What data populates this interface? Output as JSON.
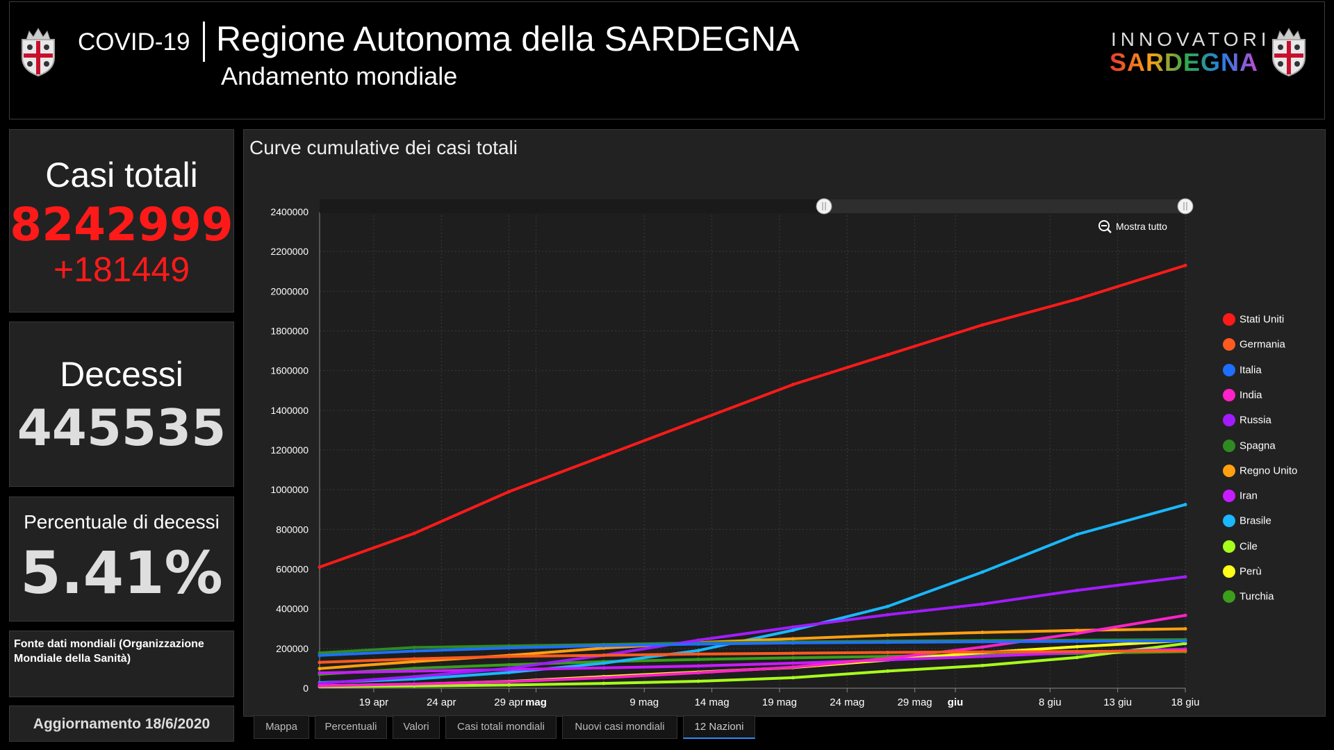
{
  "header": {
    "covid": "COVID-19",
    "region": "Regione Autonoma della SARDEGNA",
    "subtitle": "Andamento mondiale",
    "logo_top": "INNOVATORI",
    "logo_bottom": "SARDEGNA"
  },
  "stats": {
    "casi_label": "Casi totali",
    "casi_value": "8242999",
    "casi_delta": "+181449",
    "decessi_label": "Decessi",
    "decessi_value": "445535",
    "perc_label": "Percentuale di decessi",
    "perc_value": "5.41%",
    "fonte": "Fonte dati mondiali (Organizzazione Mondiale della Sanità)",
    "aggiornamento": "Aggiornamento 18/6/2020"
  },
  "colors": {
    "casi_red": "#ff1a1a",
    "accent_blue": "#2b8cff"
  },
  "tabs": [
    "Mappa",
    "Percentuali",
    "Valori",
    "Casi totali mondiali",
    "Nuovi casi mondiali",
    "12 Nazioni"
  ],
  "active_tab": "12 Nazioni",
  "zoom": {
    "reset_label": "Mostra tutto",
    "reset_icon": "zoom-out-icon"
  },
  "chart_data": {
    "type": "line",
    "title": "Curve cumulative dei casi totali",
    "xlabel": "",
    "ylabel": "",
    "x_ticks": [
      {
        "label": "19 apr",
        "date": "2020-04-19"
      },
      {
        "label": "24 apr",
        "date": "2020-04-24"
      },
      {
        "label": "29 apr",
        "date": "2020-04-29"
      },
      {
        "label": "mag",
        "date": "2020-05-01",
        "bold": true
      },
      {
        "label": "9 mag",
        "date": "2020-05-09"
      },
      {
        "label": "14 mag",
        "date": "2020-05-14"
      },
      {
        "label": "19 mag",
        "date": "2020-05-19"
      },
      {
        "label": "24 mag",
        "date": "2020-05-24"
      },
      {
        "label": "29 mag",
        "date": "2020-05-29"
      },
      {
        "label": "giu",
        "date": "2020-06-01",
        "bold": true
      },
      {
        "label": "8 giu",
        "date": "2020-06-08"
      },
      {
        "label": "13 giu",
        "date": "2020-06-13"
      },
      {
        "label": "18 giu",
        "date": "2020-06-18"
      }
    ],
    "x_range": [
      "2020-04-15",
      "2020-06-18"
    ],
    "ylim": [
      0,
      2400000
    ],
    "y_ticks": [
      0,
      200000,
      400000,
      600000,
      800000,
      1000000,
      1200000,
      1400000,
      1600000,
      1800000,
      2000000,
      2200000,
      2400000
    ],
    "grid": true,
    "legend_position": "right",
    "x": [
      "2020-04-15",
      "2020-04-22",
      "2020-04-29",
      "2020-05-06",
      "2020-05-13",
      "2020-05-20",
      "2020-05-27",
      "2020-06-03",
      "2020-06-10",
      "2020-06-18"
    ],
    "series": [
      {
        "name": "Stati Uniti",
        "color": "#ff1a1a",
        "values": [
          610000,
          780000,
          990000,
          1170000,
          1350000,
          1530000,
          1680000,
          1830000,
          1960000,
          2130000
        ]
      },
      {
        "name": "Germania",
        "color": "#ff5a1f",
        "values": [
          130000,
          148000,
          160000,
          166000,
          172000,
          176000,
          180000,
          183000,
          185000,
          188000
        ]
      },
      {
        "name": "Italia",
        "color": "#1f6fff",
        "values": [
          165000,
          187000,
          203000,
          214000,
          222000,
          228000,
          231000,
          234000,
          236000,
          238000
        ]
      },
      {
        "name": "India",
        "color": "#ff22c8",
        "values": [
          12000,
          21000,
          33000,
          53000,
          78000,
          106000,
          150000,
          207000,
          276000,
          367000
        ]
      },
      {
        "name": "Russia",
        "color": "#a21cff",
        "values": [
          24000,
          58000,
          100000,
          166000,
          242000,
          308000,
          370000,
          424000,
          493000,
          561000
        ]
      },
      {
        "name": "Spagna",
        "color": "#2e8b22",
        "values": [
          178000,
          205000,
          213000,
          220000,
          228000,
          233000,
          237000,
          240000,
          242000,
          245000
        ]
      },
      {
        "name": "Regno Unito",
        "color": "#ffa010",
        "values": [
          99000,
          134000,
          165000,
          202000,
          230000,
          249000,
          267000,
          281000,
          291000,
          299000
        ]
      },
      {
        "name": "Iran",
        "color": "#c81cff",
        "values": [
          77000,
          86000,
          94000,
          102000,
          112000,
          126000,
          143000,
          160000,
          180000,
          197000
        ]
      },
      {
        "name": "Brasile",
        "color": "#19b8ff",
        "values": [
          28000,
          46000,
          79000,
          126000,
          190000,
          292000,
          412000,
          585000,
          775000,
          925000
        ]
      },
      {
        "name": "Cile",
        "color": "#a8ff1a",
        "values": [
          8000,
          11000,
          16000,
          24000,
          35000,
          53000,
          86000,
          114000,
          155000,
          225000
        ]
      },
      {
        "name": "Perù",
        "color": "#ffff1a",
        "values": [
          12000,
          20000,
          34000,
          58000,
          81000,
          104000,
          142000,
          179000,
          209000,
          240000
        ]
      },
      {
        "name": "Turchia",
        "color": "#3b9e1c",
        "values": [
          70000,
          100000,
          118000,
          134000,
          145000,
          153000,
          160000,
          168000,
          176000,
          184000
        ]
      }
    ]
  }
}
